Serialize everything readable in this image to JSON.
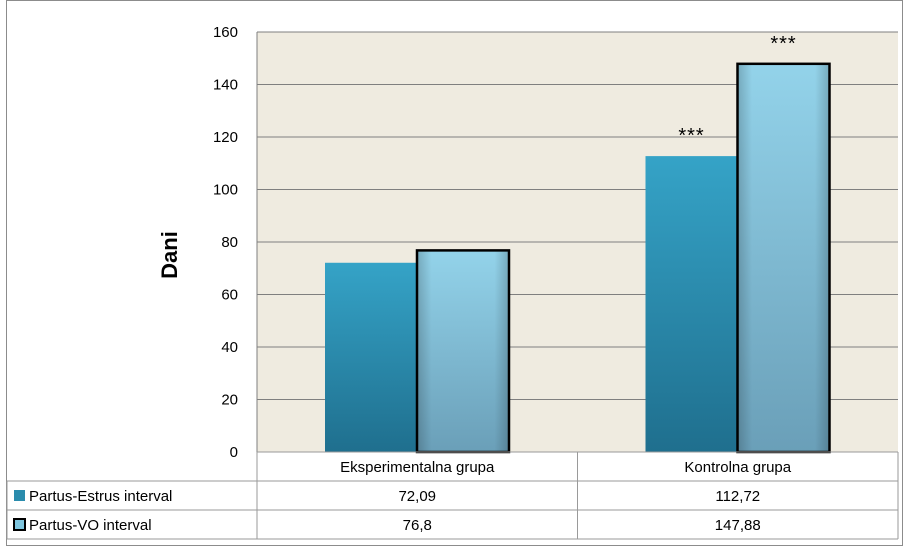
{
  "chart_data": {
    "type": "bar",
    "categories": [
      "Eksperimentalna grupa",
      "Kontrolna grupa"
    ],
    "series": [
      {
        "name": "Partus-Estrus interval",
        "values": [
          72.09,
          112.72
        ],
        "value_labels": [
          "72,09",
          "112,72"
        ],
        "color": "#2a8cad"
      },
      {
        "name": "Partus-VO interval",
        "values": [
          76.8,
          147.88
        ],
        "value_labels": [
          "76,8",
          "147,88"
        ],
        "color": "#7fc6df"
      }
    ],
    "annotations": [
      {
        "text": "***",
        "category": "Kontrolna grupa",
        "series": "Partus-Estrus interval"
      },
      {
        "text": "***",
        "category": "Kontrolna grupa",
        "series": "Partus-VO interval"
      }
    ],
    "title": "",
    "xlabel": "",
    "ylabel": "Dani",
    "ylim": [
      0,
      160
    ],
    "yticks": [
      0,
      20,
      40,
      60,
      80,
      100,
      120,
      140,
      160
    ],
    "grid": true,
    "plot_background": "#efebe0",
    "legend": "data-table"
  }
}
